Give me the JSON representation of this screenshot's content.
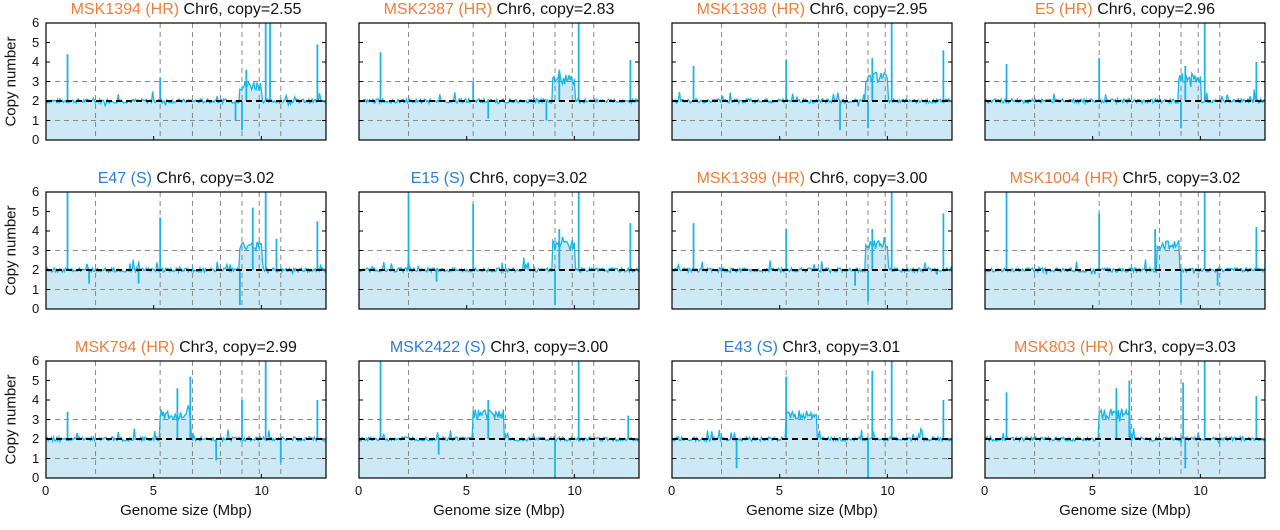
{
  "colors": {
    "hr": "#f07d3a",
    "s": "#2a7ed6",
    "line": "#17b6ea",
    "fill": "#cde9f6",
    "dashed": "#888888",
    "baseline": "#000000"
  },
  "axis_labels": {
    "ylabel": "Copy number",
    "xlabel": "Genome size (Mbp)"
  },
  "chart_data": [
    {
      "type": "line",
      "sample": "MSK1394",
      "tag": "(HR)",
      "chrom": "Chr6",
      "copy_text": "copy=2.55",
      "group": "HR",
      "xlim": [
        0,
        13
      ],
      "ylim": [
        0,
        6
      ],
      "xticks": [
        0,
        5,
        10
      ],
      "yticks": [
        0,
        1,
        2,
        3,
        4,
        5,
        6
      ],
      "ref_lines": [
        1,
        2,
        3
      ],
      "boundaries": [
        2.3,
        5.3,
        6.8,
        8.1,
        9.1,
        9.9,
        10.9
      ],
      "baseline": 2,
      "amp_region": [
        9.0,
        10.0
      ],
      "amp_level": 2.55,
      "spikes": [
        {
          "x": 1.0,
          "y": 4.4
        },
        {
          "x": 5.3,
          "y": 3.2
        },
        {
          "x": 9.3,
          "y": 3.6
        },
        {
          "x": 10.2,
          "y": 6
        },
        {
          "x": 10.4,
          "y": 6
        },
        {
          "x": 12.6,
          "y": 4.9
        },
        {
          "x": 8.8,
          "y": 1.0
        },
        {
          "x": 9.1,
          "y": 0.5
        }
      ]
    },
    {
      "type": "line",
      "sample": "MSK2387",
      "tag": "(HR)",
      "chrom": "Chr6",
      "copy_text": "copy=2.83",
      "group": "HR",
      "xlim": [
        0,
        13
      ],
      "ylim": [
        0,
        6
      ],
      "xticks": [
        0,
        5,
        10
      ],
      "yticks": [
        0,
        1,
        2,
        3,
        4,
        5,
        6
      ],
      "ref_lines": [
        1,
        2,
        3
      ],
      "boundaries": [
        2.3,
        5.3,
        6.8,
        8.1,
        9.1,
        9.9,
        10.9
      ],
      "baseline": 2,
      "amp_region": [
        9.0,
        10.0
      ],
      "amp_level": 2.83,
      "spikes": [
        {
          "x": 1.0,
          "y": 4.5
        },
        {
          "x": 5.3,
          "y": 3.0
        },
        {
          "x": 9.3,
          "y": 3.6
        },
        {
          "x": 10.2,
          "y": 6
        },
        {
          "x": 12.6,
          "y": 4.1
        },
        {
          "x": 6.0,
          "y": 1.1
        },
        {
          "x": 8.7,
          "y": 1.0
        }
      ]
    },
    {
      "type": "line",
      "sample": "MSK1398",
      "tag": "(HR)",
      "chrom": "Chr6",
      "copy_text": "copy=2.95",
      "group": "HR",
      "xlim": [
        0,
        13
      ],
      "ylim": [
        0,
        6
      ],
      "xticks": [
        0,
        5,
        10
      ],
      "yticks": [
        0,
        1,
        2,
        3,
        4,
        5,
        6
      ],
      "ref_lines": [
        1,
        2,
        3
      ],
      "boundaries": [
        2.3,
        5.3,
        6.8,
        8.1,
        9.1,
        9.9,
        10.9
      ],
      "baseline": 2,
      "amp_region": [
        9.0,
        10.0
      ],
      "amp_level": 2.95,
      "spikes": [
        {
          "x": 1.0,
          "y": 3.8
        },
        {
          "x": 5.3,
          "y": 4.1
        },
        {
          "x": 9.3,
          "y": 4.2
        },
        {
          "x": 10.2,
          "y": 6
        },
        {
          "x": 12.6,
          "y": 4.6
        },
        {
          "x": 7.8,
          "y": 0.5
        },
        {
          "x": 9.1,
          "y": 0.6
        }
      ]
    },
    {
      "type": "line",
      "sample": "E5",
      "tag": "(HR)",
      "chrom": "Chr6",
      "copy_text": "copy=2.96",
      "group": "HR",
      "xlim": [
        0,
        13
      ],
      "ylim": [
        0,
        6
      ],
      "xticks": [
        0,
        5,
        10
      ],
      "yticks": [
        0,
        1,
        2,
        3,
        4,
        5,
        6
      ],
      "ref_lines": [
        1,
        2,
        3
      ],
      "boundaries": [
        2.3,
        5.3,
        6.8,
        8.1,
        9.1,
        9.9,
        10.9
      ],
      "baseline": 2,
      "amp_region": [
        9.0,
        10.0
      ],
      "amp_level": 2.96,
      "spikes": [
        {
          "x": 1.0,
          "y": 3.9
        },
        {
          "x": 5.3,
          "y": 4.2
        },
        {
          "x": 9.3,
          "y": 3.8
        },
        {
          "x": 10.2,
          "y": 6
        },
        {
          "x": 12.6,
          "y": 4.0
        },
        {
          "x": 9.1,
          "y": 0.6
        }
      ]
    },
    {
      "type": "line",
      "sample": "E47",
      "tag": "(S)",
      "chrom": "Chr6",
      "copy_text": "copy=3.02",
      "group": "S",
      "xlim": [
        0,
        13
      ],
      "ylim": [
        0,
        6
      ],
      "xticks": [
        0,
        5,
        10
      ],
      "yticks": [
        0,
        1,
        2,
        3,
        4,
        5,
        6
      ],
      "ref_lines": [
        1,
        2,
        3
      ],
      "boundaries": [
        2.3,
        5.3,
        6.8,
        8.1,
        9.1,
        9.9,
        10.9
      ],
      "baseline": 2,
      "amp_region": [
        9.0,
        10.0
      ],
      "amp_level": 3.02,
      "spikes": [
        {
          "x": 1.0,
          "y": 6
        },
        {
          "x": 5.3,
          "y": 4.7
        },
        {
          "x": 9.6,
          "y": 5.2
        },
        {
          "x": 10.2,
          "y": 6
        },
        {
          "x": 10.7,
          "y": 3.6
        },
        {
          "x": 12.6,
          "y": 4.5
        },
        {
          "x": 4.3,
          "y": 1.3
        },
        {
          "x": 9.0,
          "y": 0.2
        },
        {
          "x": 2.0,
          "y": 1.3
        }
      ]
    },
    {
      "type": "line",
      "sample": "E15",
      "tag": "(S)",
      "chrom": "Chr6",
      "copy_text": "copy=3.02",
      "group": "S",
      "xlim": [
        0,
        13
      ],
      "ylim": [
        0,
        6
      ],
      "xticks": [
        0,
        5,
        10
      ],
      "yticks": [
        0,
        1,
        2,
        3,
        4,
        5,
        6
      ],
      "ref_lines": [
        1,
        2,
        3
      ],
      "boundaries": [
        2.3,
        5.3,
        6.8,
        8.1,
        9.1,
        9.9,
        10.9
      ],
      "baseline": 2,
      "amp_region": [
        9.0,
        10.0
      ],
      "amp_level": 3.02,
      "spikes": [
        {
          "x": 2.3,
          "y": 6
        },
        {
          "x": 5.3,
          "y": 5.4
        },
        {
          "x": 9.3,
          "y": 4.1
        },
        {
          "x": 10.2,
          "y": 6
        },
        {
          "x": 12.6,
          "y": 4.4
        },
        {
          "x": 9.1,
          "y": 0.2
        },
        {
          "x": 3.6,
          "y": 1.4
        }
      ]
    },
    {
      "type": "line",
      "sample": "MSK1399",
      "tag": "(HR)",
      "chrom": "Chr6",
      "copy_text": "copy=3.00",
      "group": "HR",
      "xlim": [
        0,
        13
      ],
      "ylim": [
        0,
        6
      ],
      "xticks": [
        0,
        5,
        10
      ],
      "yticks": [
        0,
        1,
        2,
        3,
        4,
        5,
        6
      ],
      "ref_lines": [
        1,
        2,
        3
      ],
      "boundaries": [
        2.3,
        5.3,
        6.8,
        8.1,
        9.1,
        9.9,
        10.9
      ],
      "baseline": 2,
      "amp_region": [
        9.0,
        10.0
      ],
      "amp_level": 3.0,
      "spikes": [
        {
          "x": 1.0,
          "y": 4.4
        },
        {
          "x": 5.3,
          "y": 4.1
        },
        {
          "x": 9.3,
          "y": 4.1
        },
        {
          "x": 10.2,
          "y": 6
        },
        {
          "x": 12.6,
          "y": 4.9
        },
        {
          "x": 9.1,
          "y": 0.4
        },
        {
          "x": 8.5,
          "y": 1.2
        }
      ]
    },
    {
      "type": "line",
      "sample": "MSK1004",
      "tag": "(HR)",
      "chrom": "Chr5",
      "copy_text": "copy=3.02",
      "group": "HR",
      "xlim": [
        0,
        13
      ],
      "ylim": [
        0,
        6
      ],
      "xticks": [
        0,
        5,
        10
      ],
      "yticks": [
        0,
        1,
        2,
        3,
        4,
        5,
        6
      ],
      "ref_lines": [
        1,
        2,
        3
      ],
      "boundaries": [
        2.3,
        5.3,
        6.8,
        8.1,
        9.1,
        9.9,
        10.9
      ],
      "baseline": 2,
      "amp_region": [
        8.0,
        9.0
      ],
      "amp_level": 3.02,
      "spikes": [
        {
          "x": 1.0,
          "y": 6
        },
        {
          "x": 5.3,
          "y": 4.9
        },
        {
          "x": 7.9,
          "y": 4.1
        },
        {
          "x": 10.2,
          "y": 6
        },
        {
          "x": 12.6,
          "y": 4.2
        },
        {
          "x": 9.1,
          "y": 0.3
        },
        {
          "x": 10.8,
          "y": 1.2
        }
      ]
    },
    {
      "type": "line",
      "sample": "MSK794",
      "tag": "(HR)",
      "chrom": "Chr3",
      "copy_text": "copy=2.99",
      "group": "HR",
      "xlim": [
        0,
        13
      ],
      "ylim": [
        0,
        6
      ],
      "xticks": [
        0,
        5,
        10
      ],
      "yticks": [
        0,
        1,
        2,
        3,
        4,
        5,
        6
      ],
      "ref_lines": [
        1,
        2,
        3
      ],
      "boundaries": [
        2.3,
        5.3,
        6.8,
        8.1,
        9.1,
        9.9,
        10.9
      ],
      "baseline": 2,
      "amp_region": [
        5.3,
        6.7
      ],
      "amp_level": 2.99,
      "spikes": [
        {
          "x": 1.0,
          "y": 3.4
        },
        {
          "x": 6.1,
          "y": 4.6
        },
        {
          "x": 6.7,
          "y": 5.2
        },
        {
          "x": 9.1,
          "y": 4.0
        },
        {
          "x": 10.2,
          "y": 6
        },
        {
          "x": 12.6,
          "y": 4.0
        },
        {
          "x": 7.9,
          "y": 0.9
        },
        {
          "x": 10.9,
          "y": 0.8
        }
      ]
    },
    {
      "type": "line",
      "sample": "MSK2422",
      "tag": "(S)",
      "chrom": "Chr3",
      "copy_text": "copy=3.00",
      "group": "S",
      "xlim": [
        0,
        13
      ],
      "ylim": [
        0,
        6
      ],
      "xticks": [
        0,
        5,
        10
      ],
      "yticks": [
        0,
        1,
        2,
        3,
        4,
        5,
        6
      ],
      "ref_lines": [
        1,
        2,
        3
      ],
      "boundaries": [
        2.3,
        5.3,
        6.8,
        8.1,
        9.1,
        9.9,
        10.9
      ],
      "baseline": 2,
      "amp_region": [
        5.3,
        6.7
      ],
      "amp_level": 3.0,
      "spikes": [
        {
          "x": 1.0,
          "y": 6
        },
        {
          "x": 6.0,
          "y": 4.0
        },
        {
          "x": 10.2,
          "y": 6
        },
        {
          "x": 12.5,
          "y": 3.2
        },
        {
          "x": 9.1,
          "y": 0.0
        },
        {
          "x": 3.7,
          "y": 1.2
        }
      ]
    },
    {
      "type": "line",
      "sample": "E43",
      "tag": "(S)",
      "chrom": "Chr3",
      "copy_text": "copy=3.01",
      "group": "S",
      "xlim": [
        0,
        13
      ],
      "ylim": [
        0,
        6
      ],
      "xticks": [
        0,
        5,
        10
      ],
      "yticks": [
        0,
        1,
        2,
        3,
        4,
        5,
        6
      ],
      "ref_lines": [
        1,
        2,
        3
      ],
      "boundaries": [
        2.3,
        5.3,
        6.8,
        8.1,
        9.1,
        9.9,
        10.9
      ],
      "baseline": 2,
      "amp_region": [
        5.3,
        6.7
      ],
      "amp_level": 3.01,
      "spikes": [
        {
          "x": 5.3,
          "y": 5.2
        },
        {
          "x": 9.3,
          "y": 5.5
        },
        {
          "x": 10.2,
          "y": 6
        },
        {
          "x": 12.6,
          "y": 4.0
        },
        {
          "x": 9.1,
          "y": 0.0
        },
        {
          "x": 3.0,
          "y": 0.5
        }
      ]
    },
    {
      "type": "line",
      "sample": "MSK803",
      "tag": "(HR)",
      "chrom": "Chr3",
      "copy_text": "copy=3.03",
      "group": "HR",
      "xlim": [
        0,
        13
      ],
      "ylim": [
        0,
        6
      ],
      "xticks": [
        0,
        5,
        10
      ],
      "yticks": [
        0,
        1,
        2,
        3,
        4,
        5,
        6
      ],
      "ref_lines": [
        1,
        2,
        3
      ],
      "boundaries": [
        2.3,
        5.3,
        6.8,
        8.1,
        9.1,
        9.9,
        10.9
      ],
      "baseline": 2,
      "amp_region": [
        5.3,
        6.7
      ],
      "amp_level": 3.03,
      "spikes": [
        {
          "x": 1.0,
          "y": 4.4
        },
        {
          "x": 6.1,
          "y": 4.6
        },
        {
          "x": 6.7,
          "y": 5.0
        },
        {
          "x": 9.2,
          "y": 4.9
        },
        {
          "x": 10.2,
          "y": 6
        },
        {
          "x": 12.6,
          "y": 4.2
        },
        {
          "x": 9.3,
          "y": 0.5
        }
      ]
    }
  ]
}
